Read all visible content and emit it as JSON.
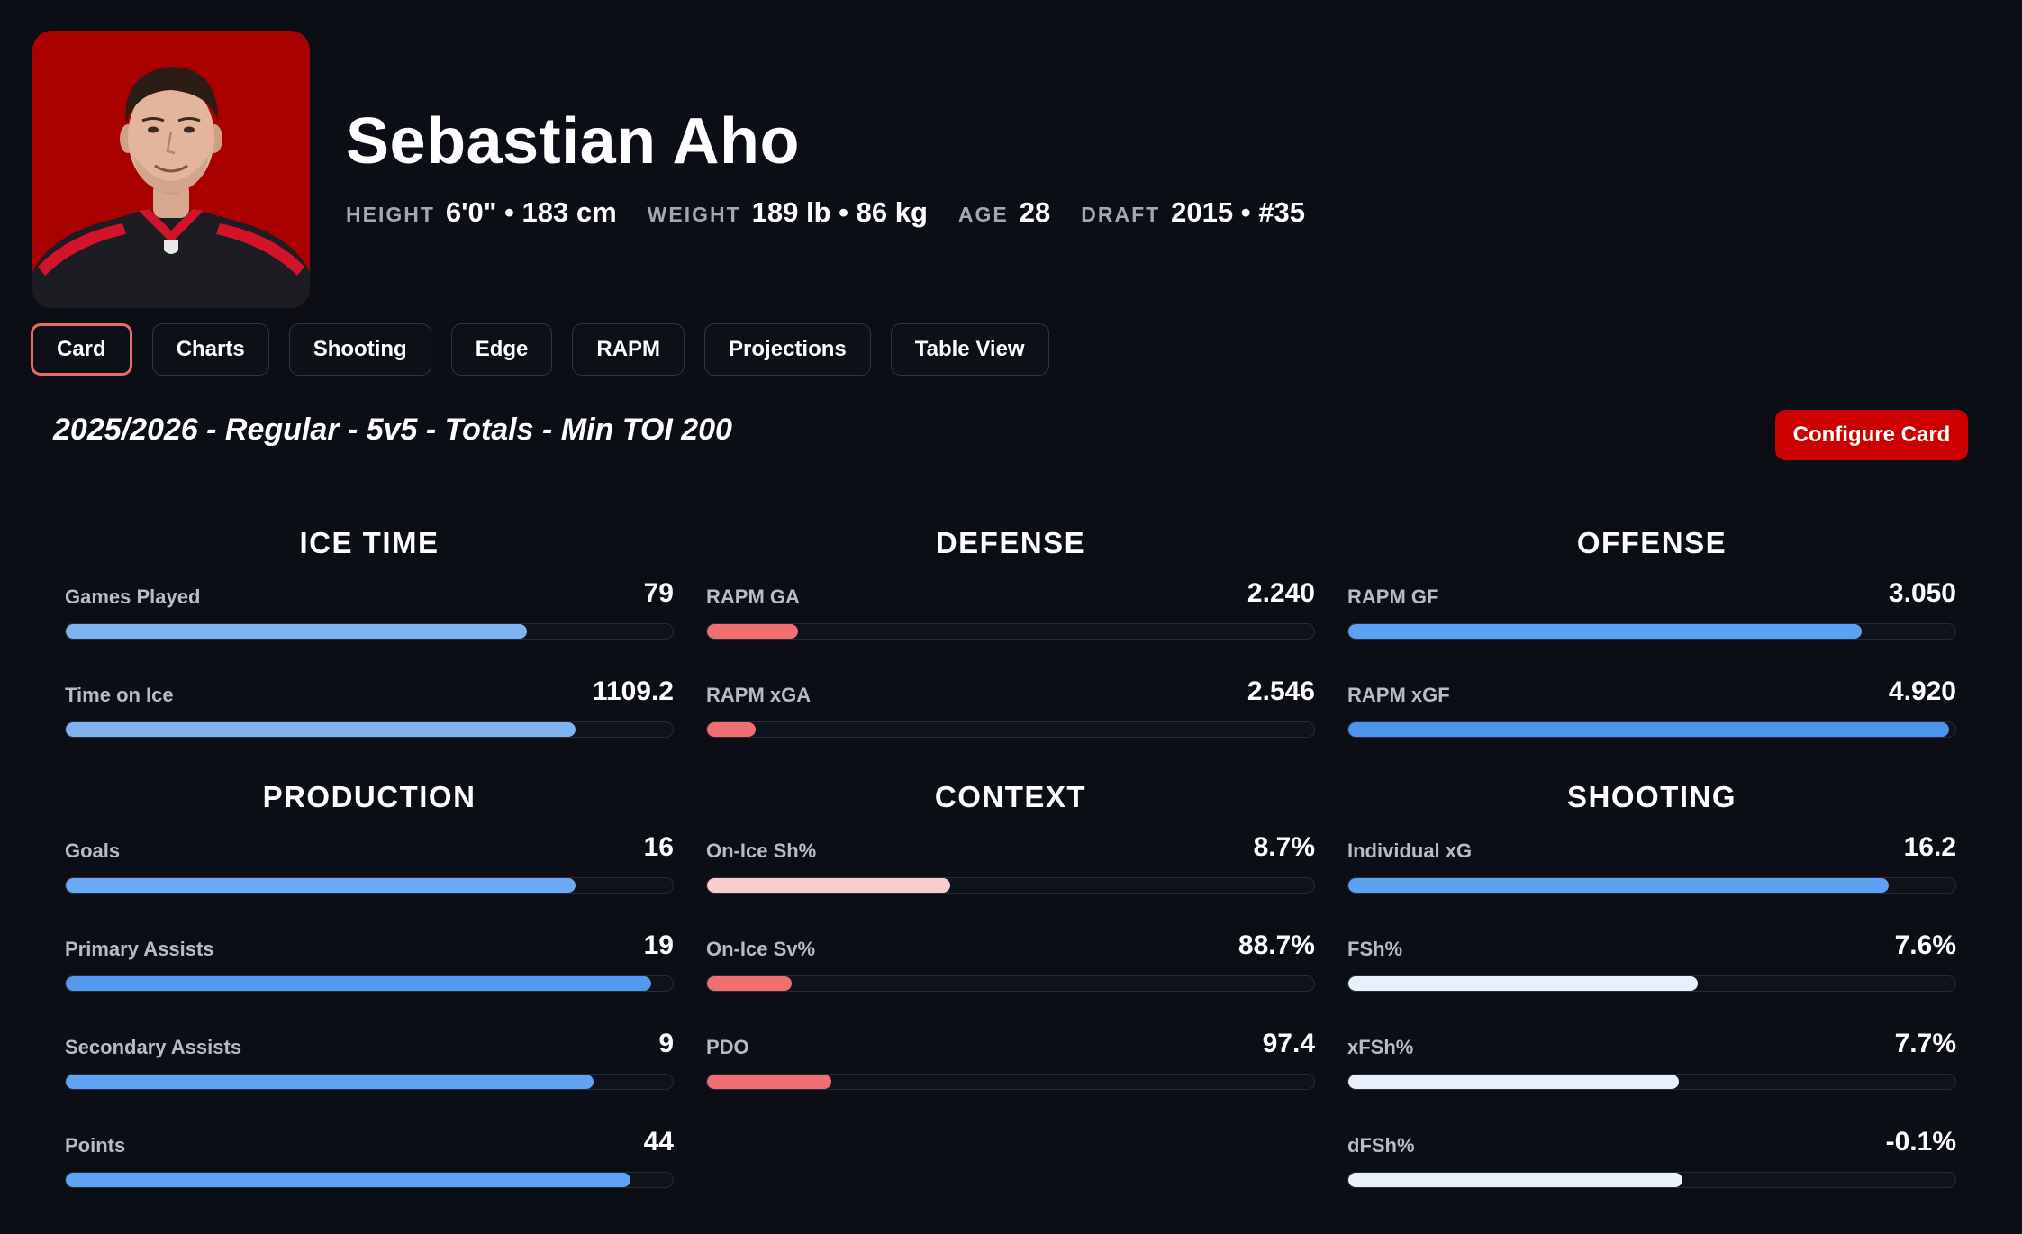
{
  "player": {
    "name": "Sebastian Aho",
    "vitals": [
      {
        "label": "HEIGHT",
        "value": "6'0\" • 183 cm"
      },
      {
        "label": "WEIGHT",
        "value": "189 lb • 86 kg"
      },
      {
        "label": "AGE",
        "value": "28"
      },
      {
        "label": "DRAFT",
        "value": "2015 • #35"
      }
    ],
    "photo_background": "#a90000"
  },
  "tabs": [
    "Card",
    "Charts",
    "Shooting",
    "Edge",
    "RAPM",
    "Projections",
    "Table View"
  ],
  "active_tab": "Card",
  "filter_title": "2025/2026 - Regular - 5v5 - Totals - Min TOI 200",
  "configure_label": "Configure Card",
  "colors": {
    "background": "#0b0e14",
    "accent": "#cc0000",
    "active_tab_border": "#e86a6a",
    "bar_light_blue": "#7eb3f2",
    "bar_blue": "#5299ef",
    "bar_red": "#f06f70",
    "bar_pink": "#f8cdcd",
    "bar_white": "#e8f0fb"
  },
  "sections": [
    {
      "title": "ICE TIME",
      "stats": [
        {
          "label": "Games Played",
          "value": "79",
          "fill": 0.76,
          "color": "#7eb3f2"
        },
        {
          "label": "Time on Ice",
          "value": "1109.2",
          "fill": 0.84,
          "color": "#7eb3f2"
        }
      ]
    },
    {
      "title": "DEFENSE",
      "stats": [
        {
          "label": "RAPM GA",
          "value": "2.240",
          "fill": 0.15,
          "color": "#f06f70"
        },
        {
          "label": "RAPM xGA",
          "value": "2.546",
          "fill": 0.08,
          "color": "#f06f70"
        }
      ]
    },
    {
      "title": "OFFENSE",
      "stats": [
        {
          "label": "RAPM GF",
          "value": "3.050",
          "fill": 0.845,
          "color": "#5ba2f3"
        },
        {
          "label": "RAPM xGF",
          "value": "4.920",
          "fill": 0.99,
          "color": "#4c95ef"
        }
      ]
    },
    {
      "title": "PRODUCTION",
      "stats": [
        {
          "label": "Goals",
          "value": "16",
          "fill": 0.84,
          "color": "#6aaaf3"
        },
        {
          "label": "Primary Assists",
          "value": "19",
          "fill": 0.965,
          "color": "#5299ef"
        },
        {
          "label": "Secondary Assists",
          "value": "9",
          "fill": 0.87,
          "color": "#5ea4f2"
        },
        {
          "label": "Points",
          "value": "44",
          "fill": 0.93,
          "color": "#5ea4f2"
        }
      ]
    },
    {
      "title": "CONTEXT",
      "stats": [
        {
          "label": "On-Ice Sh%",
          "value": "8.7%",
          "fill": 0.4,
          "color": "#f8cdcd"
        },
        {
          "label": "On-Ice Sv%",
          "value": "88.7%",
          "fill": 0.14,
          "color": "#f06f70"
        },
        {
          "label": "PDO",
          "value": "97.4",
          "fill": 0.205,
          "color": "#f06f70"
        }
      ]
    },
    {
      "title": "SHOOTING",
      "stats": [
        {
          "label": "Individual xG",
          "value": "16.2",
          "fill": 0.89,
          "color": "#5ba2f3"
        },
        {
          "label": "FSh%",
          "value": "7.6%",
          "fill": 0.575,
          "color": "#e8f0fb"
        },
        {
          "label": "xFSh%",
          "value": "7.7%",
          "fill": 0.545,
          "color": "#e8f0fb"
        },
        {
          "label": "dFSh%",
          "value": "-0.1%",
          "fill": 0.55,
          "color": "#e8f0fb"
        }
      ]
    }
  ]
}
